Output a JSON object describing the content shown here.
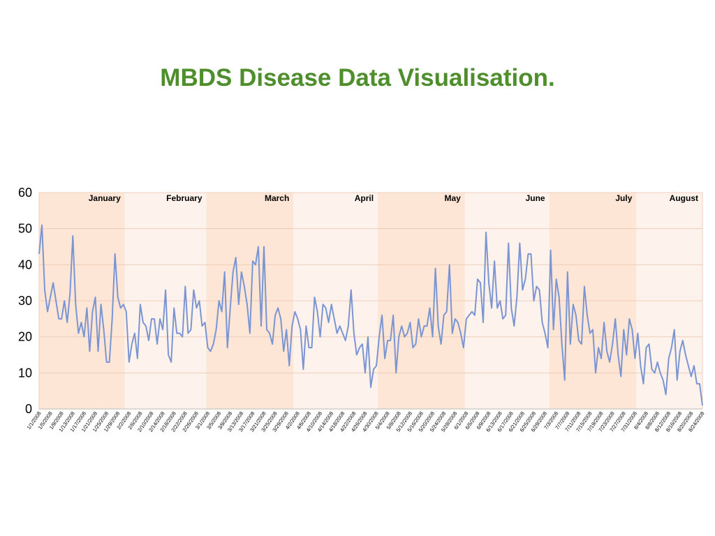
{
  "title": "MBDS Disease Data Visualisation.",
  "colors": {
    "title": "#4e8e2c",
    "line": "#7b95d3",
    "band_dark": "#fde6d6",
    "band_light": "#fef3ec",
    "grid": "#eecdb8"
  },
  "chart_data": {
    "type": "line",
    "title": "",
    "xlabel": "",
    "ylabel": "",
    "ylim": [
      0,
      60
    ],
    "yticks": [
      0,
      10,
      20,
      30,
      40,
      50,
      60
    ],
    "grid": true,
    "start_date": "2008-01-01",
    "months": [
      {
        "label": "January",
        "start": "2008-01-01",
        "end": "2008-01-31"
      },
      {
        "label": "February",
        "start": "2008-02-01",
        "end": "2008-02-29"
      },
      {
        "label": "March",
        "start": "2008-03-01",
        "end": "2008-03-31"
      },
      {
        "label": "April",
        "start": "2008-04-01",
        "end": "2008-04-30"
      },
      {
        "label": "May",
        "start": "2008-05-01",
        "end": "2008-05-31"
      },
      {
        "label": "June",
        "start": "2008-06-01",
        "end": "2008-06-30"
      },
      {
        "label": "July",
        "start": "2008-07-01",
        "end": "2008-07-31"
      },
      {
        "label": "August",
        "start": "2008-08-01",
        "end": "2008-08-27"
      }
    ],
    "x_tick_labels": [
      "1/1/2008",
      "1/5/2008",
      "1/9/2008",
      "1/13/2008",
      "1/17/2008",
      "1/21/2008",
      "1/25/2008",
      "1/29/2008",
      "2/2/2008",
      "2/6/2008",
      "2/10/2008",
      "2/14/2008",
      "2/18/2008",
      "2/22/2008",
      "2/26/2008",
      "3/1/2008",
      "3/5/2008",
      "3/9/2008",
      "3/13/2008",
      "3/17/2008",
      "3/21/2008",
      "3/25/2008",
      "3/29/2008",
      "4/2/2008",
      "4/6/2008",
      "4/10/2008",
      "4/14/2008",
      "4/18/2008",
      "4/22/2008",
      "4/26/2008",
      "4/30/2008",
      "5/4/2008",
      "5/8/2008",
      "5/12/2008",
      "5/16/2008",
      "5/20/2008",
      "5/24/2008",
      "5/28/2008",
      "6/1/2008",
      "6/5/2008",
      "6/9/2008",
      "6/13/2008",
      "6/17/2008",
      "6/21/2008",
      "6/25/2008",
      "6/29/2008",
      "7/3/2008",
      "7/7/2008",
      "7/11/2008",
      "7/15/2008",
      "7/19/2008",
      "7/23/2008",
      "7/27/2008",
      "7/31/2008",
      "8/4/2008",
      "8/8/2008",
      "8/12/2008",
      "8/16/2008",
      "8/20/2008",
      "8/24/2008"
    ],
    "series": [
      {
        "name": "",
        "values": [
          43,
          51,
          33,
          27,
          31,
          35,
          30,
          25,
          25,
          30,
          24,
          32,
          48,
          29,
          21,
          24,
          20,
          28,
          16,
          27,
          31,
          16,
          29,
          22,
          13,
          13,
          25,
          43,
          31,
          28,
          29,
          27,
          13,
          18,
          21,
          14,
          29,
          24,
          23,
          19,
          25,
          25,
          18,
          25,
          22,
          33,
          15,
          13,
          28,
          21,
          21,
          20,
          34,
          21,
          22,
          33,
          28,
          30,
          23,
          24,
          17,
          16,
          18,
          22,
          30,
          27,
          38,
          17,
          28,
          38,
          42,
          29,
          38,
          34,
          29,
          21,
          41,
          40,
          45,
          23,
          45,
          22,
          21,
          18,
          26,
          28,
          25,
          16,
          22,
          12,
          23,
          27,
          25,
          22,
          11,
          23,
          17,
          17,
          31,
          27,
          20,
          29,
          28,
          24,
          29,
          25,
          21,
          23,
          21,
          19,
          23,
          33,
          21,
          15,
          17,
          18,
          10,
          20,
          6,
          11,
          12,
          20,
          26,
          14,
          19,
          19,
          26,
          10,
          20,
          23,
          20,
          21,
          24,
          17,
          18,
          25,
          20,
          23,
          23,
          28,
          20,
          39,
          23,
          18,
          26,
          27,
          40,
          21,
          25,
          24,
          21,
          17,
          25,
          26,
          27,
          26,
          36,
          35,
          24,
          49,
          35,
          28,
          41,
          28,
          30,
          25,
          26,
          46,
          28,
          23,
          31,
          46,
          33,
          36,
          43,
          43,
          30,
          34,
          33,
          24,
          21,
          17,
          44,
          22,
          36,
          31,
          18,
          8,
          38,
          18,
          29,
          26,
          19,
          18,
          34,
          26,
          21,
          22,
          10,
          17,
          14,
          24,
          16,
          13,
          18,
          25,
          15,
          9,
          22,
          15,
          25,
          22,
          14,
          21,
          12,
          7,
          17,
          18,
          11,
          10,
          13,
          10,
          8,
          4,
          14,
          17,
          22,
          8,
          16,
          19,
          15,
          12,
          9,
          12,
          7,
          7,
          1
        ]
      }
    ]
  }
}
